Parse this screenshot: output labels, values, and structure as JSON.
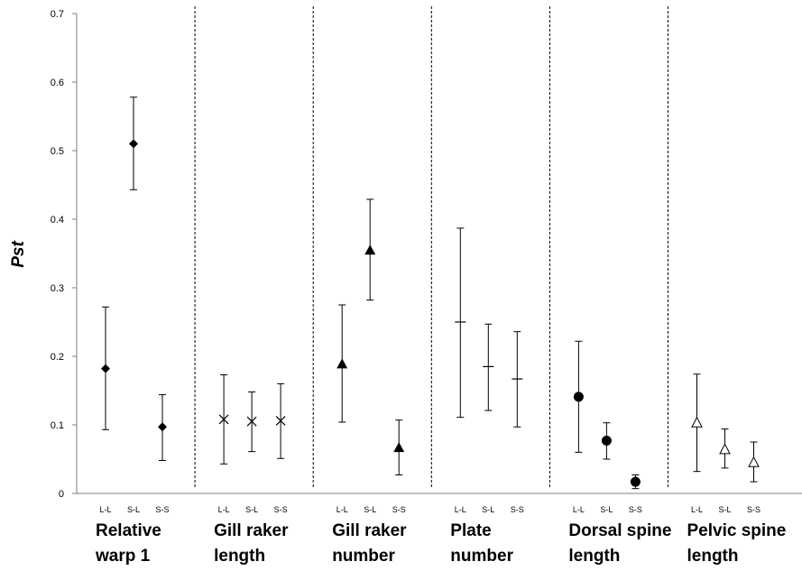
{
  "chart_data": {
    "type": "scatter",
    "ylabel": "Pst",
    "xlabel": "",
    "ylim": [
      0,
      0.7
    ],
    "yticks": [
      "0",
      "0.1",
      "0.2",
      "0.3",
      "0.4",
      "0.5",
      "0.6",
      "0.7"
    ],
    "grid": false,
    "error_bars": true,
    "groups": [
      {
        "name_lines": [
          "Relative",
          "warp 1"
        ],
        "marker": "diamond",
        "categories": [
          "L-L",
          "S-L",
          "S-S"
        ],
        "values": [
          0.182,
          0.51,
          0.097
        ],
        "lower": [
          0.093,
          0.443,
          0.048
        ],
        "upper": [
          0.272,
          0.578,
          0.144
        ]
      },
      {
        "name_lines": [
          "Gill raker",
          "length"
        ],
        "marker": "x",
        "categories": [
          "L-L",
          "S-L",
          "S-S"
        ],
        "values": [
          0.108,
          0.105,
          0.106
        ],
        "lower": [
          0.043,
          0.061,
          0.051
        ],
        "upper": [
          0.173,
          0.148,
          0.16
        ]
      },
      {
        "name_lines": [
          "Gill raker",
          "number"
        ],
        "marker": "triangle",
        "categories": [
          "L-L",
          "S-L",
          "S-S"
        ],
        "values": [
          0.189,
          0.355,
          0.067
        ],
        "lower": [
          0.104,
          0.282,
          0.027
        ],
        "upper": [
          0.275,
          0.429,
          0.107
        ]
      },
      {
        "name_lines": [
          "Plate",
          "number"
        ],
        "marker": "dash",
        "categories": [
          "L-L",
          "S-L",
          "S-S"
        ],
        "values": [
          0.25,
          0.185,
          0.167
        ],
        "lower": [
          0.111,
          0.121,
          0.097
        ],
        "upper": [
          0.387,
          0.247,
          0.236
        ]
      },
      {
        "name_lines": [
          "Dorsal spine",
          "length"
        ],
        "marker": "circle",
        "categories": [
          "L-L",
          "S-L",
          "S-S"
        ],
        "values": [
          0.141,
          0.077,
          0.017
        ],
        "lower": [
          0.06,
          0.05,
          0.007
        ],
        "upper": [
          0.222,
          0.103,
          0.027
        ]
      },
      {
        "name_lines": [
          "Pelvic spine",
          "length"
        ],
        "marker": "open-triangle",
        "categories": [
          "L-L",
          "S-L",
          "S-S"
        ],
        "values": [
          0.103,
          0.064,
          0.045
        ],
        "lower": [
          0.032,
          0.037,
          0.017
        ],
        "upper": [
          0.174,
          0.094,
          0.075
        ]
      }
    ]
  }
}
